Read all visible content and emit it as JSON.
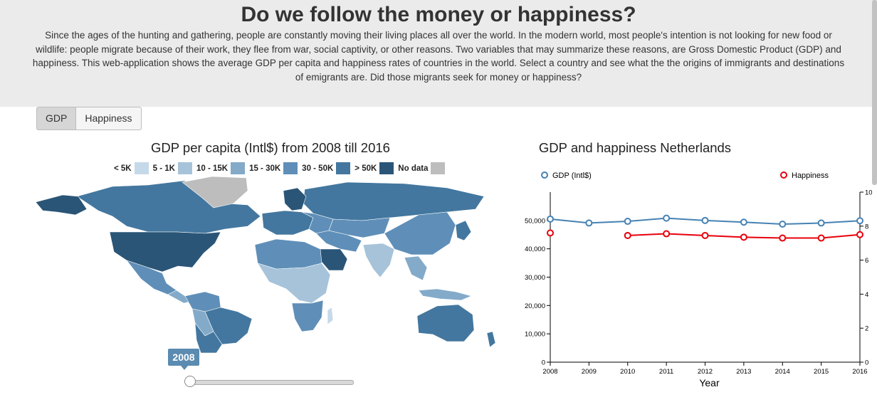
{
  "header": {
    "title": "Do we follow the money or happiness?",
    "description": "Since the ages of the hunting and gathering, people are constantly moving their living places all over the world. In the modern world, most people's intention is not looking for new food or wildlife: people migrate because of their work, they flee from war, social captivity, or other reasons. Two variables that may summarize these reasons, are Gross Domestic Product (GDP) and happiness. This web-application shows the average GDP per capita and happiness rates of countries in the world. Select a country and see what the the origins of immigrants and destinations of emigrants are. Did those migrants seek for money or happiness?"
  },
  "tabs": {
    "gdp": "GDP",
    "happiness": "Happiness"
  },
  "map": {
    "title": "GDP per capita (Intl$) from 2008 till 2016",
    "legend": [
      {
        "label": "< 5K",
        "color": "#c6d9e9"
      },
      {
        "label": "5 - 1K",
        "color": "#a6c3da"
      },
      {
        "label": "10 - 15K",
        "color": "#83aac9"
      },
      {
        "label": "15 - 30K",
        "color": "#5f8fb8"
      },
      {
        "label": "30 - 50K",
        "color": "#43779f"
      },
      {
        "label": "> 50K",
        "color": "#2a5577"
      },
      {
        "label": "No data",
        "color": "#bdbdbd"
      }
    ],
    "slider_year": "2008"
  },
  "chart_data": {
    "type": "line",
    "title": "GDP and happiness Netherlands",
    "xlabel": "Year",
    "x": [
      2008,
      2009,
      2010,
      2011,
      2012,
      2013,
      2014,
      2015,
      2016
    ],
    "xticks": [
      "2008",
      "2009",
      "2010",
      "2011",
      "2012",
      "2013",
      "2014",
      "2015",
      "2016"
    ],
    "yleft_ticks": [
      "0",
      "10,000",
      "20,000",
      "30,000",
      "40,000",
      "50,000"
    ],
    "yright_ticks": [
      "0",
      "2",
      "4",
      "6",
      "8",
      "10"
    ],
    "ylim_left": [
      0,
      60000
    ],
    "ylim_right": [
      0,
      10
    ],
    "series": [
      {
        "name": "GDP (Intl$)",
        "axis": "left",
        "color": "#4682b4",
        "values": [
          50500,
          49100,
          49700,
          50800,
          50000,
          49400,
          48700,
          49100,
          49900
        ]
      },
      {
        "name": "Happiness",
        "axis": "right",
        "color": "#e8000b",
        "values": [
          7.6,
          null,
          7.45,
          7.55,
          7.45,
          7.35,
          7.3,
          7.3,
          7.5
        ]
      }
    ],
    "legend_placement": "top"
  }
}
